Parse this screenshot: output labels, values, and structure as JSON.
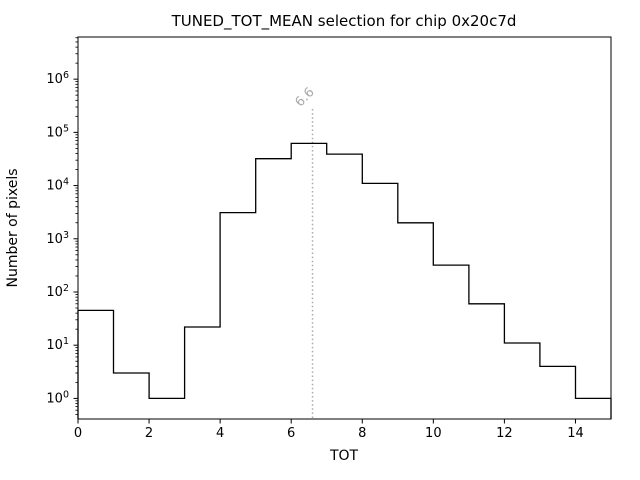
{
  "chart_data": {
    "type": "bar",
    "subtype": "step-histogram",
    "title": "TUNED_TOT_MEAN selection for chip 0x20c7d",
    "xlabel": "TOT",
    "ylabel": "Number of pixels",
    "yscale": "log",
    "grid": false,
    "legend": null,
    "xlim": [
      0,
      15
    ],
    "ylim": [
      0.41,
      6200000
    ],
    "xticks": [
      0,
      2,
      4,
      6,
      8,
      10,
      12,
      14
    ],
    "ytick_exponents": [
      0,
      1,
      2,
      3,
      4,
      5,
      6
    ],
    "ytick_base": "10",
    "bin_edges": [
      0,
      1,
      2,
      3,
      4,
      5,
      6,
      7,
      8,
      9,
      10,
      11,
      12,
      13,
      14,
      15
    ],
    "counts": [
      45,
      3,
      1,
      22,
      3100,
      32000,
      62000,
      39000,
      11000,
      2000,
      320,
      60,
      11,
      4,
      1
    ],
    "line_color": "#000000",
    "vline": {
      "x": 6.6,
      "label": "6.6",
      "color": "#aaaaaa",
      "style": "dotted",
      "label_rotation_deg": -45
    }
  },
  "layout_text": {
    "title": "TUNED_TOT_MEAN selection for chip 0x20c7d",
    "xlabel": "TOT",
    "ylabel": "Number of pixels",
    "vline_label": "6.6"
  }
}
